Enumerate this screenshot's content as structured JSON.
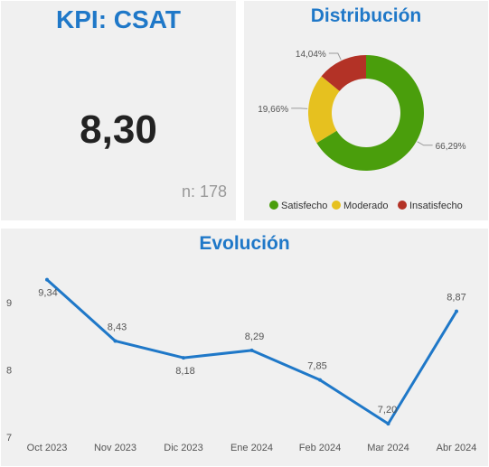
{
  "kpi": {
    "title": "KPI: CSAT",
    "value": "8,30",
    "n_label": "n: 178"
  },
  "distribution": {
    "title": "Distribución"
  },
  "evolution": {
    "title": "Evolución"
  },
  "colors": {
    "title": "#1f78c8",
    "satisfecho": "#4a9e0c",
    "moderado": "#e6c11f",
    "insatisfecho": "#b33226",
    "line": "#1f78c8"
  },
  "chart_data": [
    {
      "type": "pie",
      "variant": "donut",
      "title": "Distribución",
      "slices": [
        {
          "name": "Satisfecho",
          "value": 66.29,
          "label": "66,29%",
          "color": "#4a9e0c"
        },
        {
          "name": "Moderado",
          "value": 19.66,
          "label": "19,66%",
          "color": "#e6c11f"
        },
        {
          "name": "Insatisfecho",
          "value": 14.04,
          "label": "14,04%",
          "color": "#b33226"
        }
      ],
      "legend": {
        "placement": "bottom",
        "items": [
          "Satisfecho",
          "Moderado",
          "Insatisfecho"
        ]
      }
    },
    {
      "type": "line",
      "title": "Evolución",
      "categories": [
        "Oct 2023",
        "Nov 2023",
        "Dic 2023",
        "Ene 2024",
        "Feb 2024",
        "Mar 2024",
        "Abr 2024"
      ],
      "values": [
        9.34,
        8.43,
        8.18,
        8.29,
        7.85,
        7.2,
        8.87
      ],
      "data_labels": [
        "9,34",
        "8,43",
        "8,18",
        "8,29",
        "7,85",
        "7,20",
        "8,87"
      ],
      "y_ticks": [
        "9",
        "8",
        "7"
      ],
      "ylim": [
        7,
        9.4
      ],
      "grid": false,
      "color": "#1f78c8"
    }
  ]
}
